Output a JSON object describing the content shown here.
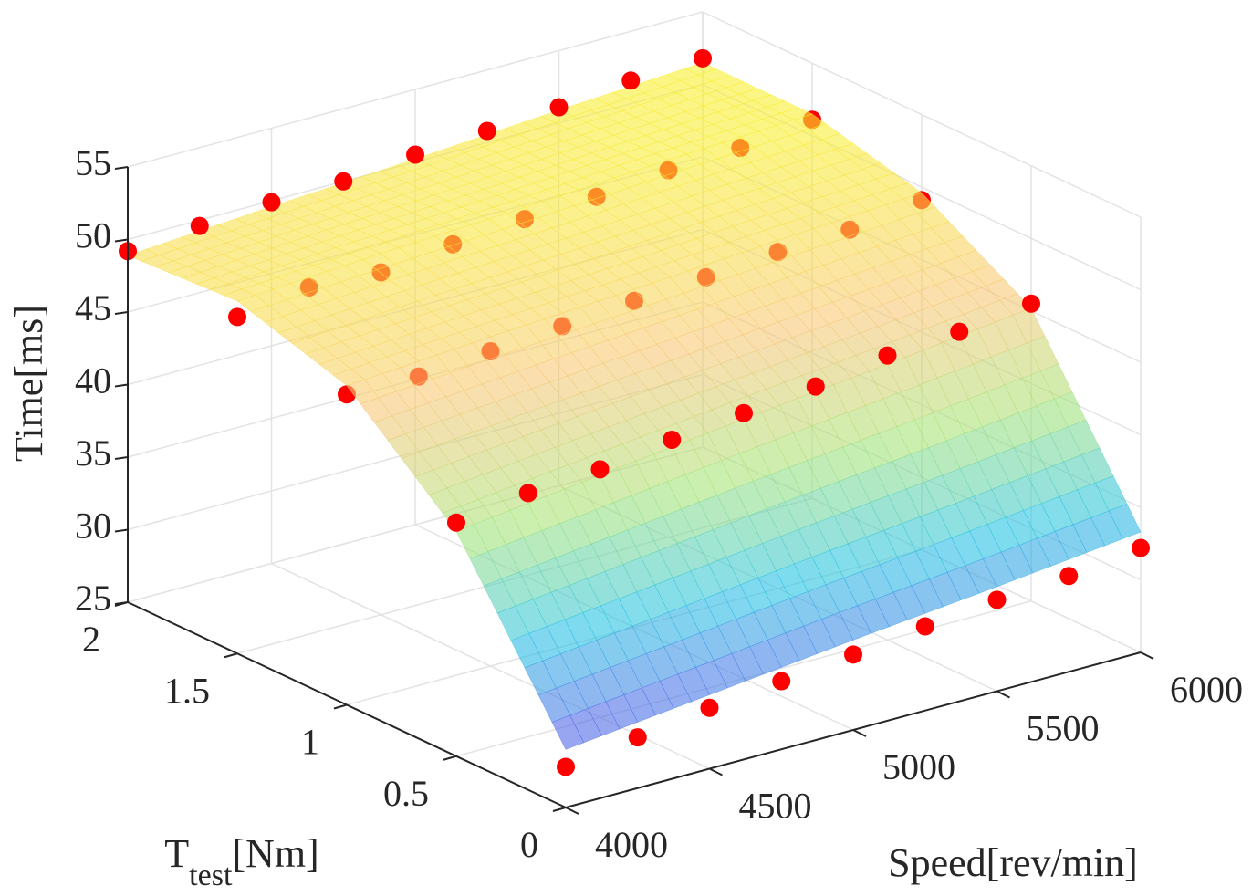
{
  "chart_data": {
    "type": "surface3d",
    "xlabel": "Speed[rev/min]",
    "ylabel": {
      "main": "T",
      "sub": "test",
      "unit": "[Nm]"
    },
    "zlabel": "Time[ms]",
    "xlim": [
      4000,
      6000
    ],
    "xticks": [
      4000,
      4500,
      5000,
      5500,
      6000
    ],
    "ylim": [
      0,
      2
    ],
    "yticks": [
      0,
      0.5,
      1,
      1.5,
      2
    ],
    "zlim": [
      25,
      55
    ],
    "zticks": [
      25,
      30,
      35,
      40,
      45,
      50,
      55
    ],
    "grid": true,
    "surface": {
      "x": [
        4000,
        4500,
        5000,
        5500,
        6000
      ],
      "y": [
        0,
        0.5,
        1,
        1.5,
        2
      ],
      "z": [
        [
          29.0,
          30.1,
          31.2,
          32.2,
          33.3
        ],
        [
          40.5,
          41.7,
          42.9,
          44.0,
          45.2
        ],
        [
          47.0,
          47.7,
          48.3,
          49.0,
          49.6
        ],
        [
          49.3,
          49.9,
          50.4,
          51.0,
          51.5
        ],
        [
          48.9,
          49.6,
          50.2,
          50.9,
          51.5
        ]
      ],
      "colormap": [
        "#5a5ae8",
        "#28c4e4",
        "#a8e478",
        "#f8c878",
        "#f8f030"
      ],
      "opacity": 0.6
    },
    "scatter": {
      "color": "#ff0000",
      "x": [
        4000,
        4250,
        4500,
        4750,
        5000,
        5250,
        5500,
        5750,
        6000,
        4000,
        4250,
        4500,
        4750,
        5000,
        5250,
        5500,
        5750,
        6000,
        4000,
        4250,
        4500,
        4750,
        5000,
        5250,
        5500,
        5750,
        6000,
        4000,
        4250,
        4500,
        4750,
        5000,
        5250,
        5500,
        5750,
        6000,
        4000,
        4250,
        4500,
        4750,
        5000,
        5250,
        5500,
        5750,
        6000
      ],
      "y": [
        0,
        0,
        0,
        0,
        0,
        0,
        0,
        0,
        0,
        0.5,
        0.5,
        0.5,
        0.5,
        0.5,
        0.5,
        0.5,
        0.5,
        0.5,
        1,
        1,
        1,
        1,
        1,
        1,
        1,
        1,
        1,
        1.5,
        1.5,
        1.5,
        1.5,
        1.5,
        1.5,
        1.5,
        1.5,
        1.5,
        2,
        2,
        2,
        2,
        2,
        2,
        2,
        2,
        2
      ],
      "z": [
        27.8,
        28.5,
        29.2,
        29.7,
        30.2,
        30.8,
        31.3,
        31.6,
        32.2,
        41.1,
        41.8,
        42.1,
        42.8,
        43.3,
        43.8,
        44.6,
        44.9,
        45.5,
        46.4,
        46.3,
        46.7,
        47.1,
        47.5,
        47.8,
        48.2,
        48.4,
        49.1,
        48.2,
        48.9,
        48.6,
        49.2,
        49.6,
        49.8,
        50.3,
        50.5,
        51.1,
        49.2,
        49.6,
        49.9,
        50.0,
        50.5,
        50.8,
        51.1,
        51.6,
        51.8
      ]
    }
  }
}
